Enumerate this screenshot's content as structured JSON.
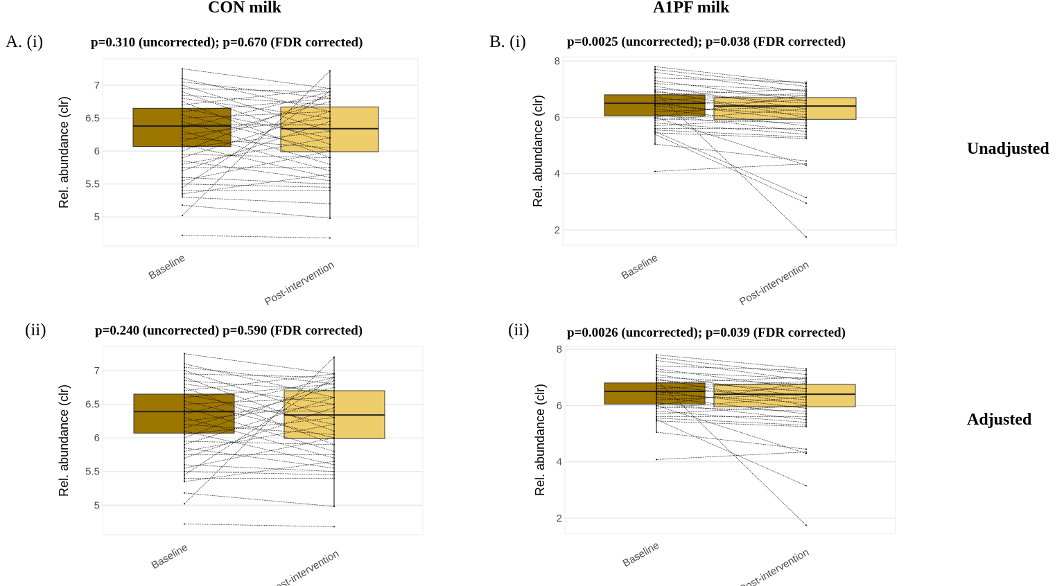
{
  "column_titles": [
    "CON milk",
    "A1PF milk"
  ],
  "row_labels": [
    "Unadjusted",
    "Adjusted"
  ],
  "colors": {
    "baseline_box": "#9C7600",
    "post_box": "#EECD6B",
    "line": "#000000",
    "grid": "#E5E5E5"
  },
  "chart_data": [
    {
      "id": "A-i",
      "panel_label": "A. (i)",
      "type": "boxplot-paired",
      "title": "p=0.310 (uncorrected); p=0.670 (FDR corrected)",
      "ylabel": "Rel. abundance (clr)",
      "ylim": [
        4.56,
        7.4
      ],
      "yticks": [
        5,
        5.5,
        6,
        6.5,
        7
      ],
      "ytick_labels": [
        "5",
        "5.5",
        "6",
        "6.5",
        "7"
      ],
      "categories": [
        "Baseline",
        "Post-intervention"
      ],
      "boxes": [
        {
          "q1": 6.07,
          "median": 6.38,
          "q3": 6.65,
          "min": 5.3,
          "max": 7.25
        },
        {
          "q1": 5.99,
          "median": 6.34,
          "q3": 6.67,
          "min": 4.98,
          "max": 7.22
        }
      ],
      "pairs": [
        [
          7.25,
          6.95
        ],
        [
          7.1,
          6.6
        ],
        [
          7.05,
          6.8
        ],
        [
          7.0,
          6.3
        ],
        [
          6.95,
          6.9
        ],
        [
          6.9,
          6.1
        ],
        [
          6.85,
          6.7
        ],
        [
          6.8,
          6.5
        ],
        [
          6.75,
          5.9
        ],
        [
          6.7,
          6.95
        ],
        [
          6.65,
          6.2
        ],
        [
          6.6,
          6.8
        ],
        [
          6.55,
          6.0
        ],
        [
          6.5,
          6.6
        ],
        [
          6.45,
          5.8
        ],
        [
          6.4,
          6.4
        ],
        [
          6.35,
          6.9
        ],
        [
          6.3,
          5.7
        ],
        [
          6.25,
          6.5
        ],
        [
          6.2,
          6.05
        ],
        [
          6.15,
          6.75
        ],
        [
          6.1,
          5.6
        ],
        [
          6.05,
          6.3
        ],
        [
          6.0,
          6.85
        ],
        [
          5.95,
          5.9
        ],
        [
          5.9,
          6.6
        ],
        [
          5.85,
          5.55
        ],
        [
          5.8,
          6.2
        ],
        [
          5.75,
          5.75
        ],
        [
          5.7,
          6.45
        ],
        [
          5.6,
          5.5
        ],
        [
          5.55,
          6.0
        ],
        [
          5.5,
          5.45
        ],
        [
          5.4,
          5.4
        ],
        [
          5.35,
          5.65
        ],
        [
          5.3,
          5.2
        ],
        [
          5.45,
          6.9
        ],
        [
          5.02,
          7.22
        ],
        [
          5.18,
          4.98
        ],
        [
          4.72,
          4.68
        ]
      ]
    },
    {
      "id": "B-i",
      "panel_label": "B. (i)",
      "type": "boxplot-paired",
      "title": "p=0.0025 (uncorrected); p=0.038 (FDR corrected)",
      "ylabel": "Rel. abundance (clr)",
      "ylim": [
        1.46,
        8.15
      ],
      "yticks": [
        2,
        4,
        6,
        8
      ],
      "ytick_labels": [
        "2",
        "4",
        "6",
        "8"
      ],
      "categories": [
        "Baseline",
        "Post-intervention"
      ],
      "boxes": [
        {
          "q1": 6.05,
          "median": 6.5,
          "q3": 6.8,
          "min": 5.05,
          "max": 7.8
        },
        {
          "q1": 5.93,
          "median": 6.4,
          "q3": 6.7,
          "min": 5.22,
          "max": 7.25
        }
      ],
      "pairs": [
        [
          7.8,
          7.2
        ],
        [
          7.7,
          7.1
        ],
        [
          7.6,
          6.9
        ],
        [
          7.4,
          7.25
        ],
        [
          7.3,
          6.6
        ],
        [
          7.2,
          6.95
        ],
        [
          7.1,
          6.3
        ],
        [
          7.0,
          6.75
        ],
        [
          6.95,
          6.0
        ],
        [
          6.9,
          6.5
        ],
        [
          6.8,
          7.0
        ],
        [
          6.7,
          6.2
        ],
        [
          6.6,
          6.85
        ],
        [
          6.5,
          5.9
        ],
        [
          6.45,
          6.6
        ],
        [
          6.4,
          6.1
        ],
        [
          6.3,
          5.7
        ],
        [
          6.2,
          6.4
        ],
        [
          6.1,
          5.5
        ],
        [
          6.0,
          6.8
        ],
        [
          5.95,
          5.8
        ],
        [
          5.9,
          6.3
        ],
        [
          5.8,
          5.4
        ],
        [
          5.7,
          6.0
        ],
        [
          5.6,
          5.6
        ],
        [
          5.55,
          5.3
        ],
        [
          5.45,
          5.25
        ],
        [
          5.05,
          4.45
        ],
        [
          4.08,
          4.35
        ],
        [
          6.9,
          1.75
        ],
        [
          5.5,
          3.15
        ],
        [
          5.4,
          2.95
        ],
        [
          6.0,
          4.3
        ]
      ]
    },
    {
      "id": "A-ii",
      "panel_label": "(ii)",
      "type": "boxplot-paired",
      "title": "p=0.240 (uncorrected) p=0.590 (FDR corrected)",
      "ylabel": "Rel. abundance (clr)",
      "ylim": [
        4.56,
        7.36
      ],
      "yticks": [
        5,
        5.5,
        6,
        6.5,
        7
      ],
      "ytick_labels": [
        "5",
        "5.5",
        "6",
        "6.5",
        "7"
      ],
      "categories": [
        "Baseline",
        "Post-intervention"
      ],
      "boxes": [
        {
          "q1": 6.07,
          "median": 6.39,
          "q3": 6.65,
          "min": 5.35,
          "max": 7.25
        },
        {
          "q1": 5.99,
          "median": 6.34,
          "q3": 6.7,
          "min": 4.98,
          "max": 7.2
        }
      ],
      "pairs": [
        [
          7.25,
          6.95
        ],
        [
          7.1,
          6.6
        ],
        [
          7.05,
          6.8
        ],
        [
          7.0,
          6.3
        ],
        [
          6.95,
          6.9
        ],
        [
          6.9,
          6.1
        ],
        [
          6.85,
          6.7
        ],
        [
          6.8,
          6.5
        ],
        [
          6.75,
          5.9
        ],
        [
          6.7,
          6.95
        ],
        [
          6.65,
          6.2
        ],
        [
          6.6,
          6.8
        ],
        [
          6.55,
          6.0
        ],
        [
          6.5,
          6.6
        ],
        [
          6.45,
          5.8
        ],
        [
          6.4,
          6.4
        ],
        [
          6.35,
          6.9
        ],
        [
          6.3,
          5.7
        ],
        [
          6.25,
          6.5
        ],
        [
          6.2,
          6.05
        ],
        [
          6.15,
          6.75
        ],
        [
          6.1,
          5.6
        ],
        [
          6.05,
          6.3
        ],
        [
          6.0,
          6.85
        ],
        [
          5.95,
          5.9
        ],
        [
          5.9,
          6.6
        ],
        [
          5.85,
          5.55
        ],
        [
          5.8,
          6.2
        ],
        [
          5.75,
          5.75
        ],
        [
          5.7,
          6.45
        ],
        [
          5.6,
          5.5
        ],
        [
          5.55,
          6.0
        ],
        [
          5.5,
          5.45
        ],
        [
          5.4,
          5.4
        ],
        [
          5.35,
          5.65
        ],
        [
          5.45,
          6.9
        ],
        [
          5.02,
          7.2
        ],
        [
          5.18,
          4.98
        ],
        [
          4.72,
          4.68
        ]
      ]
    },
    {
      "id": "B-ii",
      "panel_label": "(ii)",
      "type": "boxplot-paired",
      "title": "p=0.0026 (uncorrected); p=0.039 (FDR corrected)",
      "ylabel": "Rel. abundance (clr)",
      "ylim": [
        1.46,
        8.1
      ],
      "yticks": [
        2,
        4,
        6,
        8
      ],
      "ytick_labels": [
        "2",
        "4",
        "6",
        "8"
      ],
      "categories": [
        "Baseline",
        "Post-intervention"
      ],
      "boxes": [
        {
          "q1": 6.05,
          "median": 6.5,
          "q3": 6.8,
          "min": 5.05,
          "max": 7.8
        },
        {
          "q1": 5.95,
          "median": 6.4,
          "q3": 6.75,
          "min": 5.22,
          "max": 7.3
        }
      ],
      "pairs": [
        [
          7.8,
          7.3
        ],
        [
          7.7,
          7.1
        ],
        [
          7.6,
          6.9
        ],
        [
          7.4,
          7.25
        ],
        [
          7.3,
          6.6
        ],
        [
          7.2,
          6.95
        ],
        [
          7.1,
          6.3
        ],
        [
          7.0,
          6.75
        ],
        [
          6.95,
          6.0
        ],
        [
          6.9,
          6.5
        ],
        [
          6.8,
          7.0
        ],
        [
          6.7,
          6.2
        ],
        [
          6.6,
          6.85
        ],
        [
          6.5,
          5.9
        ],
        [
          6.45,
          6.6
        ],
        [
          6.4,
          6.1
        ],
        [
          6.3,
          5.7
        ],
        [
          6.2,
          6.4
        ],
        [
          6.1,
          5.5
        ],
        [
          6.0,
          6.8
        ],
        [
          5.95,
          5.8
        ],
        [
          5.9,
          6.3
        ],
        [
          5.8,
          5.4
        ],
        [
          5.7,
          6.0
        ],
        [
          5.6,
          5.6
        ],
        [
          5.55,
          5.3
        ],
        [
          5.45,
          5.25
        ],
        [
          5.05,
          4.45
        ],
        [
          4.08,
          4.35
        ],
        [
          6.9,
          1.75
        ],
        [
          5.5,
          3.15
        ],
        [
          6.0,
          4.3
        ]
      ]
    }
  ]
}
